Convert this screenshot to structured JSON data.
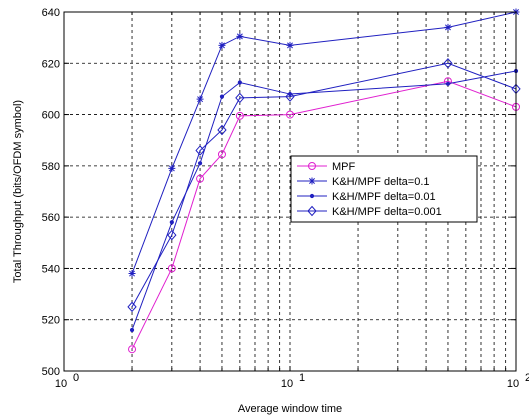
{
  "chart_data": {
    "type": "line",
    "xscale": "log",
    "xlim": [
      1,
      100
    ],
    "ylim": [
      500,
      640
    ],
    "xticks": [
      1,
      10,
      100
    ],
    "xtick_labels": [
      {
        "base": "10",
        "exp": "0"
      },
      {
        "base": "10",
        "exp": "1"
      },
      {
        "base": "10",
        "exp": "2"
      }
    ],
    "yticks": [
      500,
      520,
      540,
      560,
      580,
      600,
      620,
      640
    ],
    "ytick_labels": [
      "500",
      "520",
      "540",
      "560",
      "580",
      "600",
      "620",
      "640"
    ],
    "xlabel": "Average window time",
    "ylabel": "Total Throughput (bits/OFDM symbol)",
    "grid": true,
    "legend_position": "center-right",
    "series": [
      {
        "name": "MPF",
        "color": "#e020d0",
        "marker": "circle",
        "x": [
          2,
          3,
          4,
          5,
          6,
          10,
          50,
          100
        ],
        "y": [
          508.5,
          540,
          575,
          584.5,
          599.5,
          600,
          613,
          603
        ]
      },
      {
        "name": "K&H/MPF delta=0.1",
        "color": "#2020c0",
        "marker": "star",
        "x": [
          2,
          3,
          4,
          5,
          6,
          10,
          50,
          100
        ],
        "y": [
          538,
          579,
          606,
          627,
          630.5,
          627,
          634,
          640
        ]
      },
      {
        "name": "K&H/MPF delta=0.01",
        "color": "#2020c0",
        "marker": "dot",
        "x": [
          2,
          3,
          4,
          5,
          6,
          10,
          50,
          100
        ],
        "y": [
          516,
          558,
          581,
          607,
          612.5,
          608,
          612,
          617
        ]
      },
      {
        "name": "K&H/MPF delta=0.001",
        "color": "#2020c0",
        "marker": "diamond",
        "x": [
          2,
          3,
          4,
          5,
          6,
          10,
          50,
          100
        ],
        "y": [
          525,
          553,
          586,
          594,
          606.5,
          607,
          620,
          610
        ]
      }
    ]
  }
}
